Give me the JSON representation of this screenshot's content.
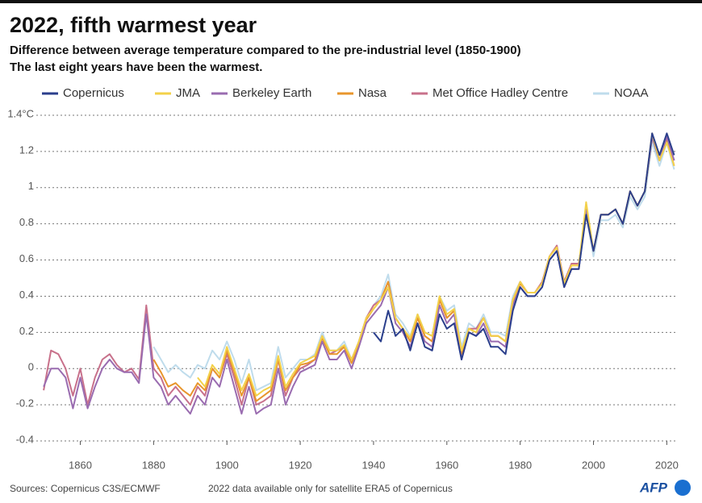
{
  "chart_data": {
    "type": "line",
    "title": "2022, fifth warmest year",
    "subtitle": [
      "Difference between average temperature compared to the pre-industrial level (1850-1900)",
      "The last eight years have been the warmest."
    ],
    "source": "Sources: Copernicus C3S/ECMWF",
    "note": "2022 data available only for satellite ERA5 of Copernicus",
    "logo": "AFP",
    "x": [
      1850,
      1852,
      1854,
      1856,
      1858,
      1860,
      1862,
      1864,
      1866,
      1868,
      1870,
      1872,
      1874,
      1876,
      1878,
      1880,
      1882,
      1884,
      1886,
      1888,
      1890,
      1892,
      1894,
      1896,
      1898,
      1900,
      1902,
      1904,
      1906,
      1908,
      1910,
      1912,
      1914,
      1916,
      1918,
      1920,
      1922,
      1924,
      1926,
      1928,
      1930,
      1932,
      1934,
      1936,
      1938,
      1940,
      1942,
      1944,
      1946,
      1948,
      1950,
      1952,
      1954,
      1956,
      1958,
      1960,
      1962,
      1964,
      1966,
      1968,
      1970,
      1972,
      1974,
      1976,
      1978,
      1980,
      1982,
      1984,
      1986,
      1988,
      1990,
      1992,
      1994,
      1996,
      1998,
      2000,
      2002,
      2004,
      2006,
      2008,
      2010,
      2012,
      2014,
      2016,
      2018,
      2020,
      2022
    ],
    "xlim": [
      1848,
      2023
    ],
    "xticks": [
      1860,
      1880,
      1900,
      1920,
      1940,
      1960,
      1980,
      2000,
      2020
    ],
    "ylim": [
      -0.4,
      1.4
    ],
    "yticks": [
      -0.4,
      -0.2,
      0,
      0.2,
      0.4,
      0.6,
      0.8,
      1,
      1.2,
      {
        "value": 1.4,
        "label": "1.4°C"
      }
    ],
    "grid": true,
    "series": [
      {
        "name": "Copernicus",
        "color": "#2b3f8c",
        "values": [
          null,
          null,
          null,
          null,
          null,
          null,
          null,
          null,
          null,
          null,
          null,
          null,
          null,
          null,
          null,
          null,
          null,
          null,
          null,
          null,
          null,
          null,
          null,
          null,
          null,
          null,
          null,
          null,
          null,
          null,
          null,
          null,
          null,
          null,
          null,
          null,
          null,
          null,
          null,
          null,
          null,
          null,
          null,
          null,
          null,
          0.2,
          0.15,
          0.32,
          0.18,
          0.22,
          0.1,
          0.25,
          0.12,
          0.1,
          0.3,
          0.22,
          0.25,
          0.05,
          0.2,
          0.18,
          0.22,
          0.12,
          0.12,
          0.08,
          0.32,
          0.45,
          0.4,
          0.4,
          0.45,
          0.6,
          0.65,
          0.45,
          0.55,
          0.55,
          0.85,
          0.65,
          0.85,
          0.85,
          0.88,
          0.8,
          0.98,
          0.9,
          0.98,
          1.3,
          1.18,
          1.3,
          1.18
        ]
      },
      {
        "name": "JMA",
        "color": "#f3d14a",
        "values": [
          null,
          null,
          null,
          null,
          null,
          null,
          null,
          null,
          null,
          null,
          null,
          null,
          null,
          null,
          null,
          null,
          null,
          null,
          null,
          null,
          null,
          -0.05,
          -0.1,
          0.02,
          -0.03,
          0.12,
          0.0,
          -0.12,
          -0.03,
          -0.15,
          -0.12,
          -0.1,
          0.07,
          -0.1,
          -0.03,
          0.03,
          0.05,
          0.07,
          0.18,
          0.1,
          0.1,
          0.13,
          0.05,
          0.15,
          0.28,
          0.33,
          0.38,
          0.45,
          0.28,
          0.22,
          0.17,
          0.3,
          0.2,
          0.18,
          0.4,
          0.3,
          0.33,
          0.1,
          0.22,
          0.2,
          0.28,
          0.18,
          0.18,
          0.15,
          0.38,
          0.48,
          0.42,
          0.42,
          0.47,
          0.62,
          0.67,
          0.47,
          0.57,
          0.57,
          0.92,
          0.65,
          0.85,
          0.85,
          0.88,
          0.8,
          0.98,
          0.9,
          0.98,
          1.3,
          1.15,
          1.25,
          1.12
        ]
      },
      {
        "name": "Berkeley Earth",
        "color": "#9a6cb0",
        "values": [
          -0.1,
          0.0,
          0.0,
          -0.05,
          -0.22,
          -0.05,
          -0.22,
          -0.1,
          0.0,
          0.05,
          0.0,
          -0.02,
          -0.02,
          -0.08,
          0.3,
          -0.05,
          -0.1,
          -0.2,
          -0.15,
          -0.2,
          -0.25,
          -0.15,
          -0.2,
          -0.05,
          -0.1,
          0.05,
          -0.1,
          -0.25,
          -0.1,
          -0.25,
          -0.22,
          -0.2,
          0.0,
          -0.2,
          -0.1,
          -0.02,
          0.0,
          0.02,
          0.15,
          0.05,
          0.05,
          0.1,
          0.0,
          0.12,
          0.25,
          0.3,
          0.35,
          0.45,
          0.25,
          0.2,
          0.12,
          0.25,
          0.15,
          0.12,
          0.35,
          0.25,
          0.3,
          0.05,
          0.2,
          0.18,
          0.25,
          0.15,
          0.15,
          0.12,
          0.35,
          0.45,
          0.4,
          0.4,
          0.45,
          0.6,
          0.65,
          0.45,
          0.55,
          0.55,
          0.88,
          0.65,
          0.85,
          0.85,
          0.88,
          0.8,
          0.98,
          0.9,
          0.98,
          1.28,
          1.15,
          1.28,
          1.15
        ]
      },
      {
        "name": "Nasa",
        "color": "#e8962c",
        "values": [
          null,
          null,
          null,
          null,
          null,
          null,
          null,
          null,
          null,
          null,
          null,
          null,
          null,
          null,
          null,
          0.05,
          -0.02,
          -0.1,
          -0.08,
          -0.12,
          -0.15,
          -0.08,
          -0.12,
          0.0,
          -0.05,
          0.1,
          -0.02,
          -0.15,
          -0.05,
          -0.18,
          -0.15,
          -0.12,
          0.05,
          -0.12,
          -0.05,
          0.02,
          0.03,
          0.05,
          0.17,
          0.08,
          0.08,
          0.12,
          0.03,
          0.13,
          0.27,
          0.33,
          0.38,
          0.48,
          0.28,
          0.22,
          0.15,
          0.28,
          0.18,
          0.15,
          0.38,
          0.28,
          0.32,
          0.08,
          0.22,
          0.2,
          0.28,
          0.18,
          0.18,
          0.15,
          0.37,
          0.47,
          0.42,
          0.42,
          0.47,
          0.62,
          0.67,
          0.47,
          0.57,
          0.57,
          0.87,
          0.65,
          0.85,
          0.85,
          0.88,
          0.8,
          0.98,
          0.9,
          0.98,
          1.28,
          1.15,
          1.27,
          1.12
        ]
      },
      {
        "name": "Met Office Hadley Centre",
        "color": "#c8718b",
        "values": [
          -0.12,
          0.1,
          0.08,
          0.0,
          -0.15,
          0.0,
          -0.2,
          -0.05,
          0.05,
          0.08,
          0.02,
          -0.02,
          0.0,
          -0.06,
          0.35,
          0.0,
          -0.05,
          -0.15,
          -0.1,
          -0.15,
          -0.2,
          -0.1,
          -0.15,
          0.0,
          -0.05,
          0.08,
          -0.05,
          -0.2,
          -0.05,
          -0.2,
          -0.18,
          -0.15,
          0.05,
          -0.15,
          -0.05,
          0.0,
          0.02,
          0.05,
          0.18,
          0.08,
          0.1,
          0.12,
          0.05,
          0.15,
          0.28,
          0.35,
          0.38,
          0.48,
          0.28,
          0.22,
          0.15,
          0.28,
          0.18,
          0.15,
          0.38,
          0.28,
          0.32,
          0.08,
          0.22,
          0.22,
          0.28,
          0.18,
          0.18,
          0.15,
          0.38,
          0.48,
          0.42,
          0.42,
          0.48,
          0.62,
          0.68,
          0.48,
          0.58,
          0.58,
          0.85,
          0.65,
          0.85,
          0.85,
          0.88,
          0.8,
          0.98,
          0.9,
          0.98,
          1.28,
          1.15,
          1.27,
          1.15
        ]
      },
      {
        "name": "NOAA",
        "color": "#bfdcec",
        "values": [
          null,
          null,
          null,
          null,
          null,
          null,
          null,
          null,
          null,
          null,
          null,
          null,
          null,
          null,
          null,
          0.12,
          0.05,
          -0.02,
          0.02,
          -0.02,
          -0.05,
          0.02,
          0.0,
          0.1,
          0.05,
          0.15,
          0.05,
          -0.08,
          0.05,
          -0.12,
          -0.1,
          -0.08,
          0.12,
          -0.05,
          0.0,
          0.05,
          0.05,
          0.08,
          0.2,
          0.1,
          0.1,
          0.15,
          0.05,
          0.15,
          0.28,
          0.35,
          0.4,
          0.52,
          0.3,
          0.25,
          0.18,
          0.3,
          0.2,
          0.18,
          0.4,
          0.32,
          0.35,
          0.12,
          0.25,
          0.22,
          0.3,
          0.2,
          0.2,
          0.18,
          0.4,
          0.48,
          0.42,
          0.42,
          0.47,
          0.6,
          0.65,
          0.47,
          0.55,
          0.55,
          0.85,
          0.62,
          0.82,
          0.82,
          0.85,
          0.78,
          0.95,
          0.88,
          0.95,
          1.25,
          1.12,
          1.25,
          1.1
        ]
      }
    ]
  }
}
